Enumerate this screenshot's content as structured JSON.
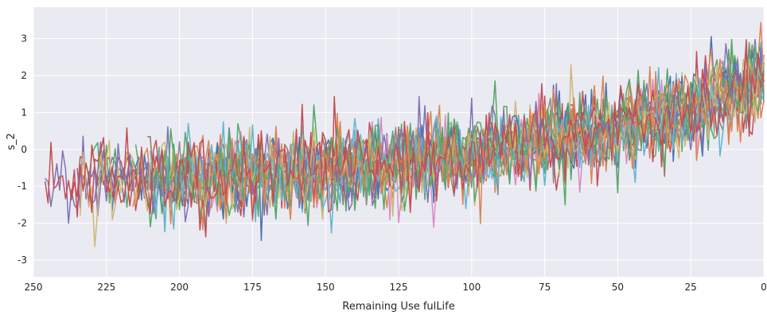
{
  "chart_data": {
    "type": "line",
    "title": "",
    "xlabel": "Remaining Use fulLife",
    "ylabel": "s_2",
    "xlim": [
      250,
      0
    ],
    "ylim": [
      -3.45,
      3.85
    ],
    "x_inverted": true,
    "grid": true,
    "legend": "none",
    "x_ticks": [
      250,
      225,
      200,
      175,
      150,
      125,
      100,
      75,
      50,
      25,
      0
    ],
    "y_ticks": [
      -3,
      -2,
      -1,
      0,
      1,
      2,
      3
    ],
    "background": "#eaeaf2",
    "grid_color": "#ffffff",
    "x_start_range": [
      190,
      250
    ],
    "trend": [
      {
        "x": 250,
        "y": -0.85
      },
      {
        "x": 200,
        "y": -0.75
      },
      {
        "x": 150,
        "y": -0.55
      },
      {
        "x": 100,
        "y": -0.15
      },
      {
        "x": 75,
        "y": 0.25
      },
      {
        "x": 50,
        "y": 0.55
      },
      {
        "x": 25,
        "y": 1.0
      },
      {
        "x": 0,
        "y": 1.95
      }
    ],
    "noise_sd": 0.55,
    "series": [
      {
        "color": "#4c72b0"
      },
      {
        "color": "#dd8452"
      },
      {
        "color": "#55a868"
      },
      {
        "color": "#c44e52"
      },
      {
        "color": "#8172b3"
      },
      {
        "color": "#937860"
      },
      {
        "color": "#da8bc3"
      },
      {
        "color": "#8c8c8c"
      },
      {
        "color": "#ccb974"
      },
      {
        "color": "#64b5cd"
      },
      {
        "color": "#4c72b0"
      },
      {
        "color": "#dd8452"
      },
      {
        "color": "#55a868"
      },
      {
        "color": "#c44e52"
      },
      {
        "color": "#8172b3"
      },
      {
        "color": "#ccb974"
      },
      {
        "color": "#64b5cd"
      },
      {
        "color": "#55a868"
      },
      {
        "color": "#dd8452"
      },
      {
        "color": "#c44e52"
      }
    ]
  }
}
